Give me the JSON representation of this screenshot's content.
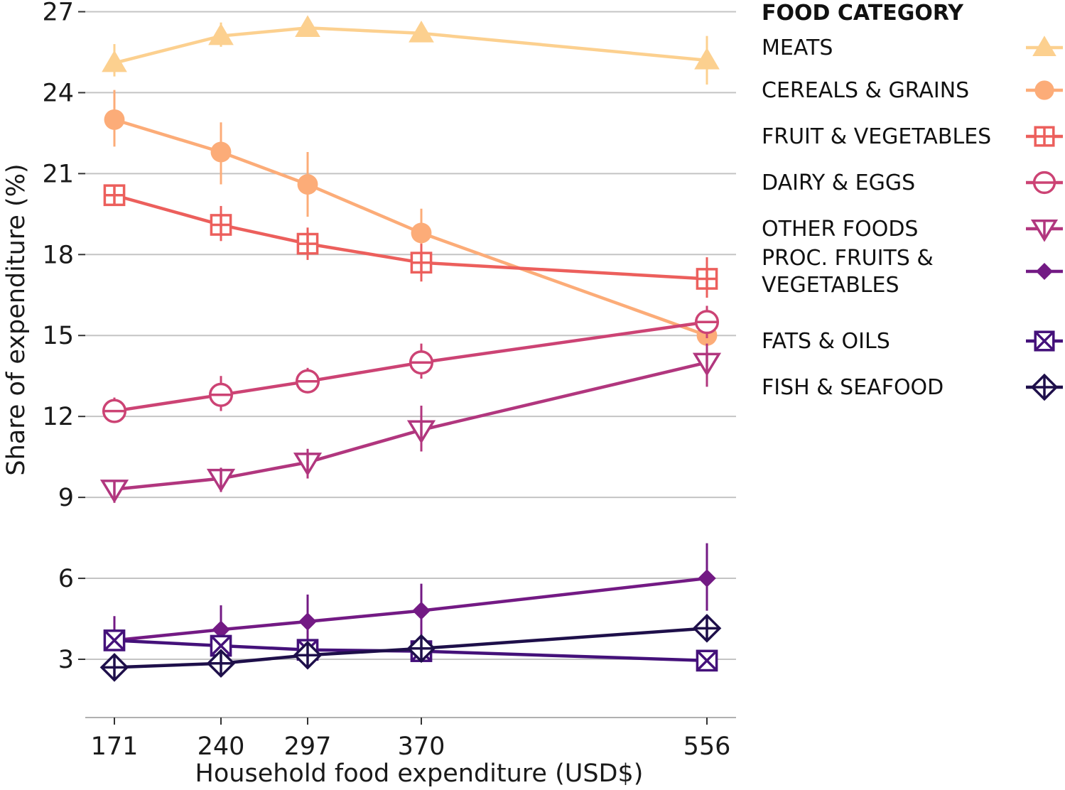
{
  "chart_data": {
    "type": "line",
    "xlabel": "Household food expenditure (USD$)",
    "ylabel": "Share of expenditure (%)",
    "x": [
      171,
      240,
      297,
      370,
      556
    ],
    "xticks": [
      "171",
      "240",
      "297",
      "370",
      "556"
    ],
    "yticks": [
      "3",
      "6",
      "9",
      "12",
      "15",
      "18",
      "21",
      "24",
      "27"
    ],
    "ylim": [
      1,
      27
    ],
    "grid": "horizontal",
    "legend": {
      "title": "FOOD CATEGORY",
      "placement": "right"
    },
    "series": [
      {
        "name": "MEATS",
        "label_lines": [
          "MEATS"
        ],
        "color": "#fcd08f",
        "marker": "triangle-up",
        "values": [
          25.1,
          26.1,
          26.4,
          26.2,
          25.2
        ],
        "error_low": [
          24.6,
          25.7,
          26.3,
          25.9,
          24.3
        ],
        "error_high": [
          25.8,
          26.6,
          26.6,
          26.4,
          26.1
        ]
      },
      {
        "name": "CEREALS & GRAINS",
        "label_lines": [
          "CEREALS & GRAINS"
        ],
        "color": "#fcac78",
        "marker": "circle-filled",
        "values": [
          23.0,
          21.8,
          20.6,
          18.8,
          15.0
        ],
        "error_low": [
          22.0,
          20.6,
          19.4,
          17.9,
          14.7
        ],
        "error_high": [
          24.1,
          22.9,
          21.8,
          19.7,
          15.3
        ]
      },
      {
        "name": "FRUIT & VEGETABLES",
        "label_lines": [
          "FRUIT & VEGETABLES"
        ],
        "color": "#ec5f5c",
        "marker": "square-plus",
        "values": [
          20.2,
          19.1,
          18.4,
          17.7,
          17.1
        ],
        "error_low": [
          19.9,
          18.5,
          17.8,
          17.0,
          16.4
        ],
        "error_high": [
          20.5,
          19.8,
          19.0,
          18.4,
          17.9
        ]
      },
      {
        "name": "DAIRY & EGGS",
        "label_lines": [
          "DAIRY & EGGS"
        ],
        "color": "#cc4374",
        "marker": "circle-minus",
        "values": [
          12.2,
          12.8,
          13.3,
          14.0,
          15.5
        ],
        "error_low": [
          11.8,
          12.2,
          12.9,
          13.4,
          14.9
        ],
        "error_high": [
          12.7,
          13.5,
          13.8,
          14.7,
          16.1
        ]
      },
      {
        "name": "OTHER FOODS",
        "label_lines": [
          "OTHER FOODS"
        ],
        "color": "#b1367e",
        "marker": "triangle-down",
        "values": [
          9.3,
          9.7,
          10.3,
          11.5,
          14.0
        ],
        "error_low": [
          8.8,
          9.2,
          9.7,
          10.7,
          13.1
        ],
        "error_high": [
          9.6,
          10.1,
          10.8,
          12.4,
          14.7
        ]
      },
      {
        "name": "PROC. FRUITS & VEGETABLES",
        "label_lines": [
          "PROC. FRUITS &",
          "VEGETABLES"
        ],
        "color": "#731a84",
        "marker": "diamond-filled",
        "values": [
          3.7,
          4.1,
          4.4,
          4.8,
          6.0
        ],
        "error_low": [
          3.3,
          3.6,
          3.7,
          3.8,
          4.8
        ],
        "error_high": [
          4.6,
          5.0,
          5.4,
          5.8,
          7.3
        ]
      },
      {
        "name": "FATS & OILS",
        "label_lines": [
          "FATS & OILS"
        ],
        "color": "#44117a",
        "marker": "square-x",
        "values": [
          3.7,
          3.5,
          3.35,
          3.3,
          2.95
        ],
        "error_low": [
          3.5,
          3.3,
          3.2,
          3.15,
          2.85
        ],
        "error_high": [
          3.9,
          3.7,
          3.5,
          3.45,
          3.05
        ]
      },
      {
        "name": "FISH & SEAFOOD",
        "label_lines": [
          "FISH & SEAFOOD"
        ],
        "color": "#1e0f4a",
        "marker": "diamond-plus",
        "values": [
          2.7,
          2.85,
          3.15,
          3.4,
          4.15
        ],
        "error_low": [
          2.6,
          2.75,
          3.05,
          3.3,
          4.0
        ],
        "error_high": [
          2.8,
          2.95,
          3.25,
          3.5,
          4.3
        ]
      }
    ]
  }
}
